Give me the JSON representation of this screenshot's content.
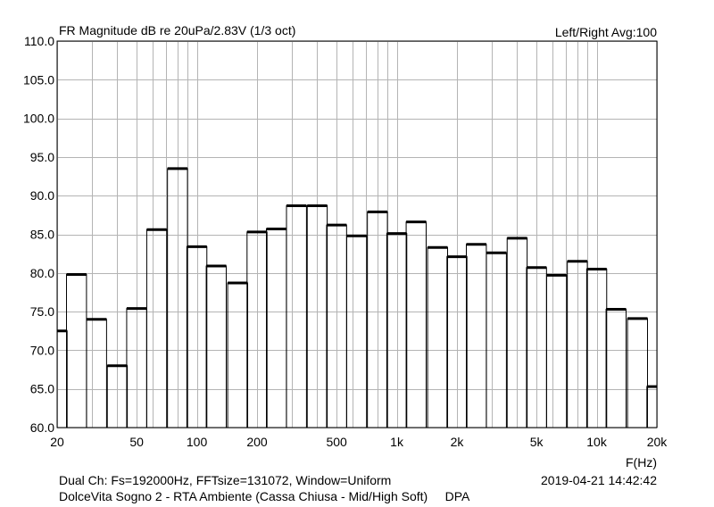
{
  "chart_data": {
    "type": "bar",
    "title": "FR Magnitude dB re 20uPa/2.83V (1/3 oct)",
    "top_right": "Left/Right  Avg:100",
    "xlabel": "F(Hz)",
    "x_scale": "log",
    "xlim": [
      20,
      20000
    ],
    "ylim": [
      60,
      110
    ],
    "grid": true,
    "x_ticks": [
      {
        "value": 20,
        "label": "20"
      },
      {
        "value": 50,
        "label": "50"
      },
      {
        "value": 100,
        "label": "100"
      },
      {
        "value": 200,
        "label": "200"
      },
      {
        "value": 500,
        "label": "500"
      },
      {
        "value": 1000,
        "label": "1k"
      },
      {
        "value": 2000,
        "label": "2k"
      },
      {
        "value": 5000,
        "label": "5k"
      },
      {
        "value": 10000,
        "label": "10k"
      },
      {
        "value": 20000,
        "label": "20k"
      }
    ],
    "y_ticks": [
      "60.0",
      "65.0",
      "70.0",
      "75.0",
      "80.0",
      "85.0",
      "90.0",
      "95.0",
      "100.0",
      "105.0",
      "110.0"
    ],
    "x_minor_grid": [
      30,
      40,
      60,
      70,
      80,
      90,
      300,
      400,
      600,
      700,
      800,
      900,
      3000,
      4000,
      6000,
      7000,
      8000,
      9000
    ],
    "bands": [
      {
        "f": 20,
        "value": 72.5
      },
      {
        "f": 25,
        "value": 79.8
      },
      {
        "f": 31.5,
        "value": 74.0
      },
      {
        "f": 40,
        "value": 68.0
      },
      {
        "f": 50,
        "value": 75.4
      },
      {
        "f": 63,
        "value": 85.6
      },
      {
        "f": 80,
        "value": 93.5
      },
      {
        "f": 100,
        "value": 83.4
      },
      {
        "f": 125,
        "value": 80.9
      },
      {
        "f": 160,
        "value": 78.7
      },
      {
        "f": 200,
        "value": 85.3
      },
      {
        "f": 250,
        "value": 85.7
      },
      {
        "f": 315,
        "value": 88.7
      },
      {
        "f": 400,
        "value": 88.7
      },
      {
        "f": 500,
        "value": 86.2
      },
      {
        "f": 630,
        "value": 84.8
      },
      {
        "f": 800,
        "value": 87.9
      },
      {
        "f": 1000,
        "value": 85.1
      },
      {
        "f": 1250,
        "value": 86.6
      },
      {
        "f": 1600,
        "value": 83.3
      },
      {
        "f": 2000,
        "value": 82.1
      },
      {
        "f": 2500,
        "value": 83.7
      },
      {
        "f": 3150,
        "value": 82.6
      },
      {
        "f": 4000,
        "value": 84.5
      },
      {
        "f": 5000,
        "value": 80.7
      },
      {
        "f": 6300,
        "value": 79.7
      },
      {
        "f": 8000,
        "value": 81.5
      },
      {
        "f": 10000,
        "value": 80.5
      },
      {
        "f": 12500,
        "value": 75.3
      },
      {
        "f": 16000,
        "value": 74.1
      },
      {
        "f": 20000,
        "value": 65.3
      }
    ]
  },
  "footer": {
    "line1": "Dual Ch: Fs=192000Hz, FFTsize=131072, Window=Uniform",
    "line2": "DolceVita Sogno 2 - RTA Ambiente (Cassa Chiusa - Mid/High Soft)     DPA",
    "timestamp": "2019-04-21  14:42:42"
  }
}
